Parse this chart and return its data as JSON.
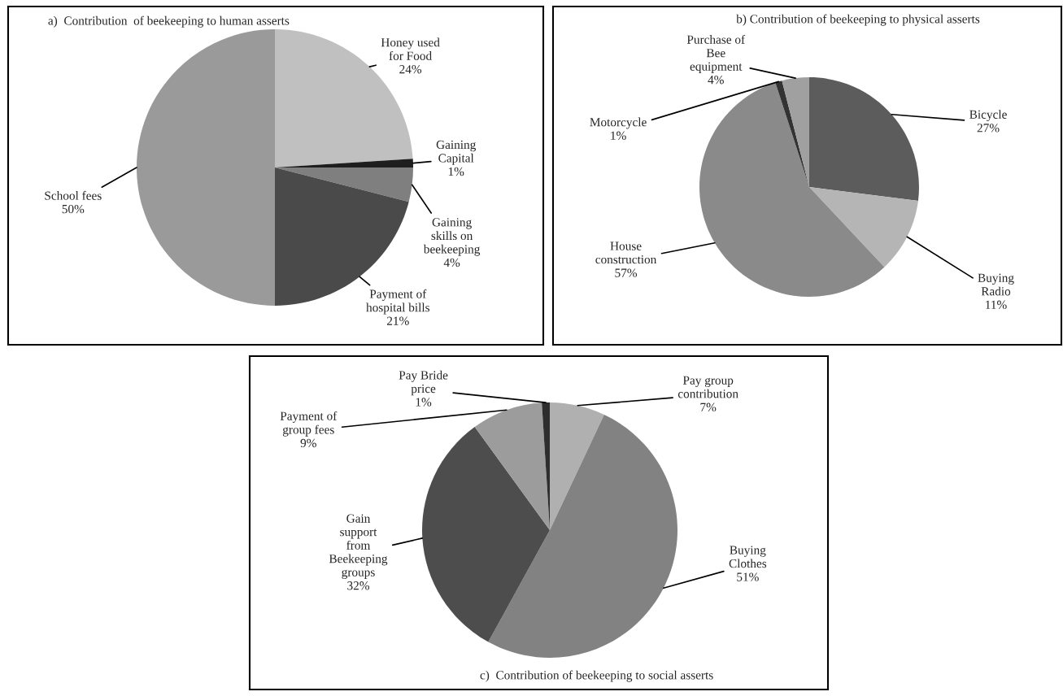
{
  "chart_data": [
    {
      "type": "pie",
      "title": "a)  Contribution  of beekeeping to human asserts",
      "categories": [
        "Honey used\nfor Food",
        "Gaining\nCapital",
        "Gaining\nskills on\nbeekeeping",
        "Payment of\nhospital bills",
        "School fees"
      ],
      "values": [
        24,
        1,
        4,
        21,
        50
      ],
      "value_labels": [
        "24%",
        "1%",
        "4%",
        "21%",
        "50%"
      ],
      "colors": [
        "#c0c0c0",
        "#1e1e1e",
        "#7f7f7f",
        "#4a4a4a",
        "#9a9a9a"
      ]
    },
    {
      "type": "pie",
      "title": "b) Contribution of beekeeping to physical asserts",
      "categories": [
        "Bicycle",
        "Buying\nRadio",
        "House\nconstruction",
        "Motorcycle",
        "Purchase of\nBee\nequipment"
      ],
      "values": [
        27,
        11,
        57,
        1,
        4
      ],
      "value_labels": [
        "27%",
        "11%",
        "57%",
        "1%",
        "4%"
      ],
      "colors": [
        "#5c5c5c",
        "#b5b5b5",
        "#8a8a8a",
        "#333333",
        "#a0a0a0"
      ]
    },
    {
      "type": "pie",
      "title": "c)  Contribution of beekeeping to social asserts",
      "categories": [
        "Pay group\ncontribution",
        "Buying\nClothes",
        "Gain\nsupport\nfrom\nBeekeeping\ngroups",
        "Payment of\ngroup fees",
        "Pay Bride\nprice"
      ],
      "values": [
        7,
        51,
        32,
        9,
        1
      ],
      "value_labels": [
        "7%",
        "51%",
        "32%",
        "9%",
        "1%"
      ],
      "colors": [
        "#b0b0b0",
        "#828282",
        "#4d4d4d",
        "#9c9c9c",
        "#2e2e2e"
      ]
    }
  ]
}
